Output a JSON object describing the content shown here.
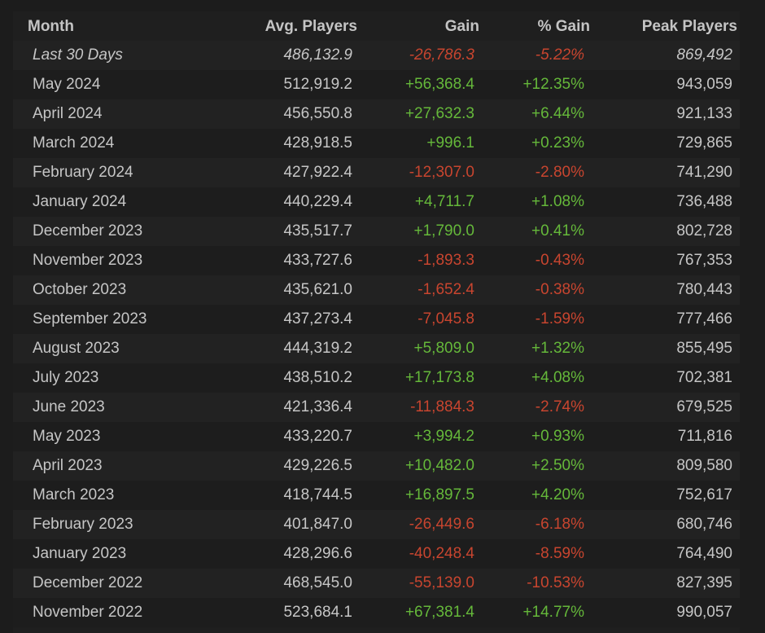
{
  "colors": {
    "background": "#1c1c1c",
    "text": "#c6c6c6",
    "positive": "#65b83a",
    "negative": "#c8452f"
  },
  "header": {
    "month": "Month",
    "avg_players": "Avg. Players",
    "gain": "Gain",
    "pct_gain": "% Gain",
    "peak_players": "Peak Players"
  },
  "rows": [
    {
      "month": "Last 30 Days",
      "avg": "486,132.9",
      "gain": "-26,786.3",
      "pct": "-5.22%",
      "peak": "869,492",
      "trend": "neg",
      "italic": true
    },
    {
      "month": "May 2024",
      "avg": "512,919.2",
      "gain": "+56,368.4",
      "pct": "+12.35%",
      "peak": "943,059",
      "trend": "pos"
    },
    {
      "month": "April 2024",
      "avg": "456,550.8",
      "gain": "+27,632.3",
      "pct": "+6.44%",
      "peak": "921,133",
      "trend": "pos"
    },
    {
      "month": "March 2024",
      "avg": "428,918.5",
      "gain": "+996.1",
      "pct": "+0.23%",
      "peak": "729,865",
      "trend": "pos"
    },
    {
      "month": "February 2024",
      "avg": "427,922.4",
      "gain": "-12,307.0",
      "pct": "-2.80%",
      "peak": "741,290",
      "trend": "neg"
    },
    {
      "month": "January 2024",
      "avg": "440,229.4",
      "gain": "+4,711.7",
      "pct": "+1.08%",
      "peak": "736,488",
      "trend": "pos"
    },
    {
      "month": "December 2023",
      "avg": "435,517.7",
      "gain": "+1,790.0",
      "pct": "+0.41%",
      "peak": "802,728",
      "trend": "pos"
    },
    {
      "month": "November 2023",
      "avg": "433,727.6",
      "gain": "-1,893.3",
      "pct": "-0.43%",
      "peak": "767,353",
      "trend": "neg"
    },
    {
      "month": "October 2023",
      "avg": "435,621.0",
      "gain": "-1,652.4",
      "pct": "-0.38%",
      "peak": "780,443",
      "trend": "neg"
    },
    {
      "month": "September 2023",
      "avg": "437,273.4",
      "gain": "-7,045.8",
      "pct": "-1.59%",
      "peak": "777,466",
      "trend": "neg"
    },
    {
      "month": "August 2023",
      "avg": "444,319.2",
      "gain": "+5,809.0",
      "pct": "+1.32%",
      "peak": "855,495",
      "trend": "pos"
    },
    {
      "month": "July 2023",
      "avg": "438,510.2",
      "gain": "+17,173.8",
      "pct": "+4.08%",
      "peak": "702,381",
      "trend": "pos"
    },
    {
      "month": "June 2023",
      "avg": "421,336.4",
      "gain": "-11,884.3",
      "pct": "-2.74%",
      "peak": "679,525",
      "trend": "neg"
    },
    {
      "month": "May 2023",
      "avg": "433,220.7",
      "gain": "+3,994.2",
      "pct": "+0.93%",
      "peak": "711,816",
      "trend": "pos"
    },
    {
      "month": "April 2023",
      "avg": "429,226.5",
      "gain": "+10,482.0",
      "pct": "+2.50%",
      "peak": "809,580",
      "trend": "pos"
    },
    {
      "month": "March 2023",
      "avg": "418,744.5",
      "gain": "+16,897.5",
      "pct": "+4.20%",
      "peak": "752,617",
      "trend": "pos"
    },
    {
      "month": "February 2023",
      "avg": "401,847.0",
      "gain": "-26,449.6",
      "pct": "-6.18%",
      "peak": "680,746",
      "trend": "neg"
    },
    {
      "month": "January 2023",
      "avg": "428,296.6",
      "gain": "-40,248.4",
      "pct": "-8.59%",
      "peak": "764,490",
      "trend": "neg"
    },
    {
      "month": "December 2022",
      "avg": "468,545.0",
      "gain": "-55,139.0",
      "pct": "-10.53%",
      "peak": "827,395",
      "trend": "neg"
    },
    {
      "month": "November 2022",
      "avg": "523,684.1",
      "gain": "+67,381.4",
      "pct": "+14.77%",
      "peak": "990,057",
      "trend": "pos"
    }
  ]
}
